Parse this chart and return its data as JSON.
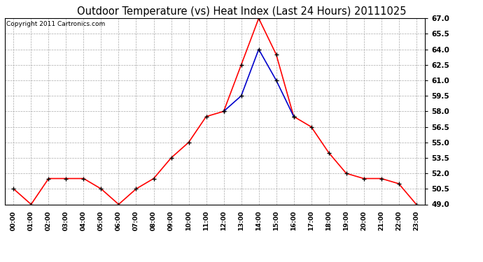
{
  "title": "Outdoor Temperature (vs) Heat Index (Last 24 Hours) 20111025",
  "copyright_text": "Copyright 2011 Cartronics.com",
  "x_labels": [
    "00:00",
    "01:00",
    "02:00",
    "03:00",
    "04:00",
    "05:00",
    "06:00",
    "07:00",
    "08:00",
    "09:00",
    "10:00",
    "11:00",
    "12:00",
    "13:00",
    "14:00",
    "15:00",
    "16:00",
    "17:00",
    "18:00",
    "19:00",
    "20:00",
    "21:00",
    "22:00",
    "23:00"
  ],
  "temp_values": [
    50.5,
    49.0,
    51.5,
    51.5,
    51.5,
    50.5,
    49.0,
    50.5,
    51.5,
    53.5,
    55.0,
    57.5,
    58.0,
    62.5,
    67.0,
    63.5,
    57.5,
    56.5,
    54.0,
    52.0,
    51.5,
    51.5,
    51.0,
    49.0
  ],
  "heat_values": [
    null,
    null,
    null,
    null,
    null,
    null,
    null,
    null,
    null,
    null,
    null,
    null,
    58.0,
    59.5,
    64.0,
    61.0,
    57.5,
    null,
    null,
    null,
    null,
    null,
    null,
    null
  ],
  "ylim_min": 49.0,
  "ylim_max": 67.0,
  "y_ticks": [
    49.0,
    50.5,
    52.0,
    53.5,
    55.0,
    56.5,
    58.0,
    59.5,
    61.0,
    62.5,
    64.0,
    65.5,
    67.0
  ],
  "temp_color": "#ff0000",
  "heat_color": "#0000cc",
  "marker_color": "#000000",
  "bg_color": "#ffffff",
  "grid_color": "#aaaaaa",
  "title_fontsize": 10.5,
  "copyright_fontsize": 6.5,
  "tick_fontsize": 7.5,
  "xtick_fontsize": 6.5
}
